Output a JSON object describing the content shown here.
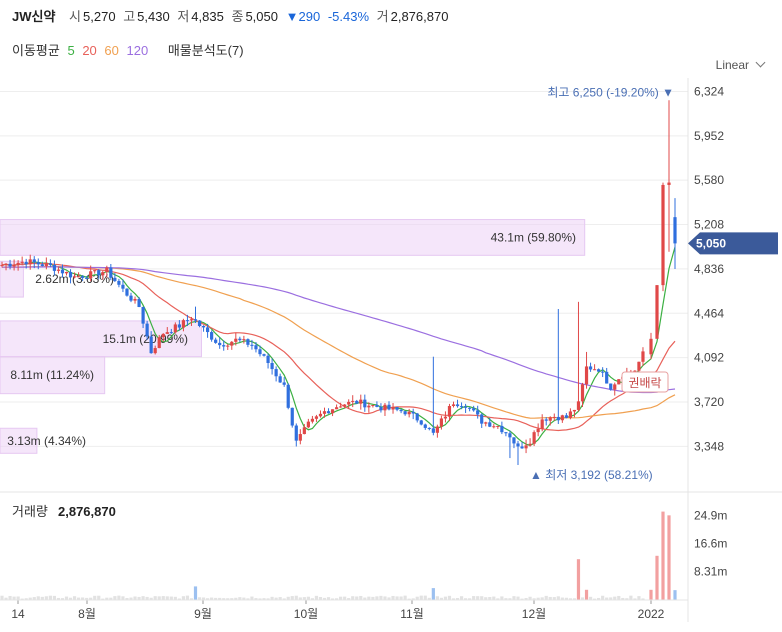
{
  "header": {
    "name": "JW신약",
    "open_label": "시",
    "open": "5,270",
    "high_label": "고",
    "high": "5,430",
    "low_label": "저",
    "low": "4,835",
    "close_label": "종",
    "close": "5,050",
    "change_arrow": "▼",
    "change": "290",
    "change_pct": "-5.43%",
    "volume_label": "거",
    "volume": "2,876,870"
  },
  "ma_legend": {
    "label": "이동평균",
    "periods": [
      "5",
      "20",
      "60",
      "120"
    ],
    "colors": [
      "#3cb043",
      "#e8615a",
      "#f0a050",
      "#9b6fe0"
    ],
    "vp_label": "매물분석도(7)"
  },
  "scale_label": "Linear",
  "chart_data": {
    "type": "candlestick",
    "y_ticks": [
      "6,324",
      "5,952",
      "5,580",
      "5,208",
      "4,836",
      "4,464",
      "4,092",
      "3,720",
      "3,348"
    ],
    "y_values": [
      6324,
      5952,
      5580,
      5208,
      4836,
      4464,
      4092,
      3720,
      3348
    ],
    "ylim": [
      3150,
      6420
    ],
    "x_ticks": [
      "14",
      "8월",
      "9월",
      "10월",
      "11월",
      "12월",
      "2022"
    ],
    "current_price": "5,050",
    "current_value": 5050,
    "max_marker": {
      "label": "최고",
      "value_text": "6,250 (-19.20%)",
      "arrow": "▼",
      "value": 6250
    },
    "min_marker": {
      "label": "최저",
      "value_text": "3,192 (58.21%)",
      "arrow": "▲",
      "value": 3192
    },
    "rights_label": "권배락",
    "volume_profile": [
      {
        "label": "43.1m (59.80%)",
        "price_from": 4950,
        "price_to": 5250,
        "share": 0.7496
      },
      {
        "label": "2.62m (3.63%)",
        "price_from": 4600,
        "price_to": 4900,
        "share": 0.03
      },
      {
        "label": "15.1m (20.99%)",
        "price_from": 4100,
        "price_to": 4400,
        "share": 0.2583
      },
      {
        "label": "8.11m (11.24%)",
        "price_from": 3790,
        "price_to": 4100,
        "share": 0.1342
      },
      {
        "label": "3.13m (4.34%)",
        "price_from": 3290,
        "price_to": 3500,
        "share": 0.0473
      }
    ],
    "volume_panel": {
      "label": "거래량",
      "value": "2,876,870",
      "ticks": [
        "24.9m",
        "16.6m",
        "8.31m"
      ],
      "tick_values": [
        24.9,
        16.6,
        8.31
      ],
      "ymax": 30
    }
  }
}
